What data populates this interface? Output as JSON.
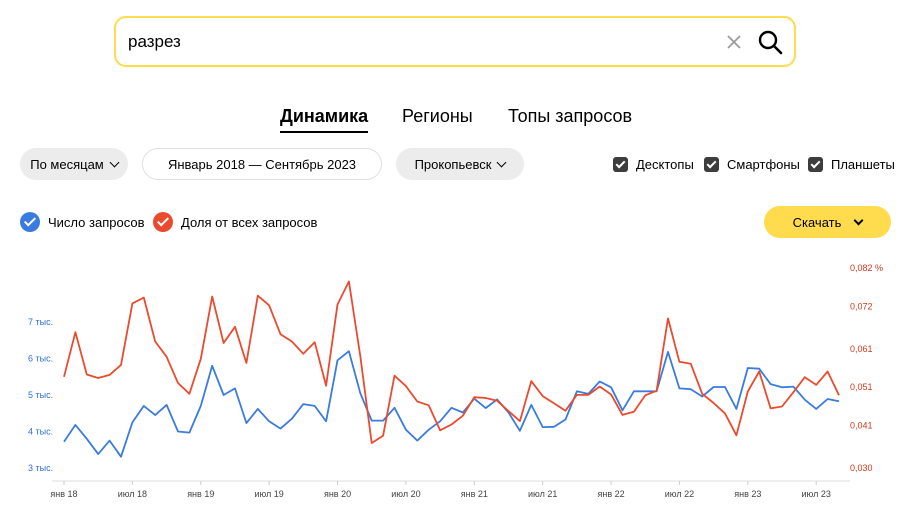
{
  "search": {
    "value": "разрез"
  },
  "tabs": [
    {
      "label": "Динамика",
      "active": true
    },
    {
      "label": "Регионы",
      "active": false
    },
    {
      "label": "Топы запросов",
      "active": false
    }
  ],
  "filters": {
    "period": "По месяцам",
    "date_range": "Январь 2018 — Сентябрь 2023",
    "region": "Прокопьевск"
  },
  "devices": [
    {
      "label": "Десктопы",
      "checked": true
    },
    {
      "label": "Смартфоны",
      "checked": true
    },
    {
      "label": "Планшеты",
      "checked": true
    }
  ],
  "legend": {
    "count_label": "Число запросов",
    "share_label": "Доля от всех запросов"
  },
  "download_label": "Скачать",
  "colors": {
    "accent": "#ffdb4d",
    "count": "#3a7be0",
    "share": "#ea4b2e"
  },
  "chart_data": {
    "type": "line",
    "x_ticks": [
      "янв 18",
      "июл 18",
      "янв 19",
      "июл 19",
      "янв 20",
      "июл 20",
      "янв 21",
      "июл 21",
      "янв 22",
      "июл 22",
      "янв 23",
      "июл 23"
    ],
    "left_ticks": [
      {
        "label": "3 тыс.",
        "value": 3000
      },
      {
        "label": "4 тыс.",
        "value": 4000
      },
      {
        "label": "5 тыс.",
        "value": 5000
      },
      {
        "label": "6 тыс.",
        "value": 6000
      },
      {
        "label": "7 тыс.",
        "value": 7000
      }
    ],
    "right_ticks": [
      {
        "label": "0,030",
        "value": 0.03
      },
      {
        "label": "0,041",
        "value": 0.041
      },
      {
        "label": "0,051",
        "value": 0.051
      },
      {
        "label": "0,061",
        "value": 0.061
      },
      {
        "label": "0,072",
        "value": 0.072
      },
      {
        "label": "0,082 %",
        "value": 0.082
      }
    ],
    "series": [
      {
        "name": "Число запросов",
        "axis": "left",
        "color": "#3a7be0",
        "values": [
          3720,
          4180,
          3800,
          3380,
          3750,
          3310,
          4250,
          4700,
          4450,
          4730,
          4000,
          3970,
          4700,
          5800,
          5000,
          5180,
          4230,
          4620,
          4280,
          4080,
          4350,
          4750,
          4700,
          4280,
          5950,
          6200,
          5050,
          4300,
          4300,
          4650,
          4050,
          3750,
          4050,
          4280,
          4650,
          4520,
          4900,
          4640,
          4880,
          4520,
          4020,
          4730,
          4120,
          4130,
          4330,
          5100,
          5030,
          5370,
          5210,
          4580,
          5100,
          5100,
          5100,
          6180,
          5180,
          5160,
          4960,
          5220,
          5220,
          4620,
          5740,
          5720,
          5300,
          5210,
          5230,
          4870,
          4620,
          4890,
          4830
        ]
      },
      {
        "name": "Доля от всех запросов",
        "axis": "right",
        "color": "#ea4b2e",
        "values": [
          0.0537,
          0.0653,
          0.0543,
          0.0534,
          0.0542,
          0.0568,
          0.0728,
          0.0743,
          0.0629,
          0.0589,
          0.0521,
          0.0493,
          0.0584,
          0.0746,
          0.0625,
          0.0667,
          0.0573,
          0.0748,
          0.0723,
          0.0648,
          0.0629,
          0.0597,
          0.0627,
          0.0514,
          0.0725,
          0.0785,
          0.0591,
          0.0365,
          0.0384,
          0.054,
          0.0513,
          0.0473,
          0.0463,
          0.0398,
          0.0413,
          0.0436,
          0.0484,
          0.0482,
          0.0475,
          0.0448,
          0.0422,
          0.0526,
          0.0487,
          0.0468,
          0.0449,
          0.049,
          0.049,
          0.0512,
          0.0491,
          0.0438,
          0.0446,
          0.0489,
          0.0501,
          0.0689,
          0.0576,
          0.0571,
          0.0493,
          0.0469,
          0.0442,
          0.0385,
          0.0499,
          0.0551,
          0.0455,
          0.046,
          0.0497,
          0.0536,
          0.0516,
          0.0551,
          0.0489
        ]
      }
    ]
  }
}
